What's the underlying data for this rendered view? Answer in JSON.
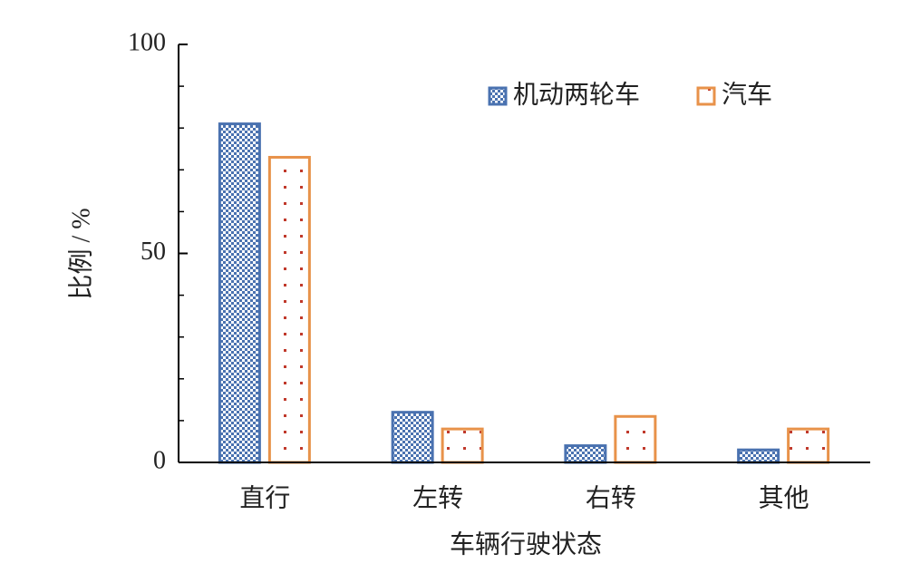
{
  "chart_data": {
    "type": "bar",
    "categories": [
      "直行",
      "左转",
      "右转",
      "其他"
    ],
    "series": [
      {
        "name": "机动两轮车",
        "color": "#4a72b0",
        "values": [
          81,
          12,
          4,
          3
        ]
      },
      {
        "name": "汽车",
        "color": "#e8924a",
        "values": [
          73,
          8,
          11,
          8
        ]
      }
    ],
    "ylim": [
      0,
      100
    ],
    "yticks": [
      0,
      50,
      100
    ],
    "minor_yticks": [
      10,
      20,
      30,
      40,
      60,
      70,
      80,
      90
    ],
    "ylabel": "比例 / %",
    "xlabel": "车辆行驶状态"
  }
}
